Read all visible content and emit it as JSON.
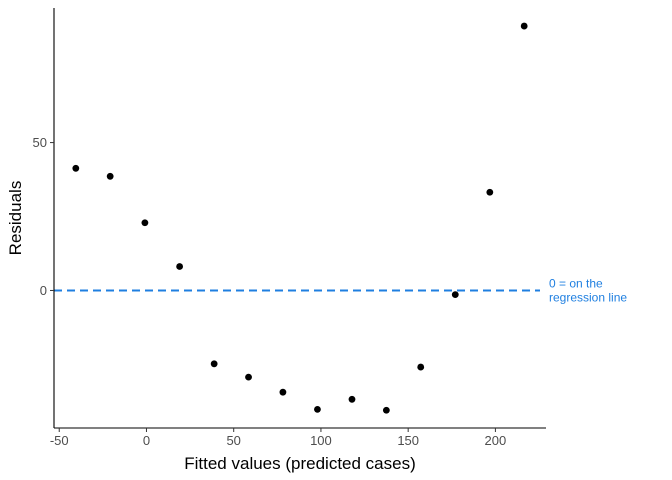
{
  "chart_data": {
    "type": "scatter",
    "xlabel": "Fitted values (predicted cases)",
    "ylabel": "Residuals",
    "xlim": [
      -53,
      229
    ],
    "ylim": [
      -46.5,
      95.5
    ],
    "x_ticks": [
      -50,
      0,
      50,
      100,
      150,
      200
    ],
    "x_tick_labels": [
      "-50",
      "0",
      "50",
      "100",
      "150",
      "200"
    ],
    "y_ticks": [
      0,
      50
    ],
    "y_tick_labels": [
      "0",
      "50"
    ],
    "grid": false,
    "points": [
      {
        "x": -40.5,
        "y": 41.3
      },
      {
        "x": -20.8,
        "y": 38.6
      },
      {
        "x": -0.9,
        "y": 22.9
      },
      {
        "x": 19.0,
        "y": 8.1
      },
      {
        "x": 38.8,
        "y": -24.8
      },
      {
        "x": 58.5,
        "y": -29.3
      },
      {
        "x": 78.2,
        "y": -34.4
      },
      {
        "x": 98.0,
        "y": -40.2
      },
      {
        "x": 117.8,
        "y": -36.8
      },
      {
        "x": 137.5,
        "y": -40.5
      },
      {
        "x": 157.2,
        "y": -25.9
      },
      {
        "x": 177.0,
        "y": -1.4
      },
      {
        "x": 196.8,
        "y": 33.2
      },
      {
        "x": 216.5,
        "y": 89.4
      }
    ],
    "reference_line": {
      "y": 0,
      "color": "#1f7fe0",
      "style": "dashed"
    },
    "annotation": {
      "lines": [
        "0 = on the",
        "regression line"
      ],
      "color": "#1f7fe0"
    },
    "point_color": "#000000"
  }
}
